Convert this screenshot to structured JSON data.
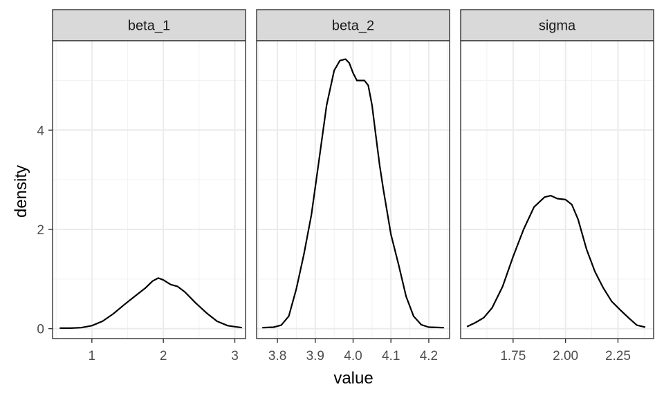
{
  "chart_data": {
    "type": "line",
    "xlabel": "value",
    "ylabel": "density",
    "ylim": [
      -0.2,
      5.8
    ],
    "y_ticks": [
      0,
      2,
      4
    ],
    "y_tick_labels": [
      "0",
      "2",
      "4"
    ],
    "grid": true,
    "facets": [
      {
        "label": "beta_1",
        "xlim": [
          0.45,
          3.15
        ],
        "x_ticks": [
          1,
          2,
          3
        ],
        "x_tick_labels": [
          "1",
          "2",
          "3"
        ],
        "series": [
          {
            "x": [
              0.55,
              0.7,
              0.85,
              1.0,
              1.15,
              1.3,
              1.45,
              1.6,
              1.75,
              1.85,
              1.93,
              2.0,
              2.1,
              2.2,
              2.3,
              2.45,
              2.6,
              2.75,
              2.9,
              3.0,
              3.1
            ],
            "y": [
              0.01,
              0.01,
              0.02,
              0.06,
              0.15,
              0.3,
              0.48,
              0.65,
              0.82,
              0.96,
              1.02,
              0.98,
              0.89,
              0.85,
              0.74,
              0.52,
              0.32,
              0.15,
              0.06,
              0.04,
              0.02
            ]
          }
        ]
      },
      {
        "label": "beta_2",
        "xlim": [
          3.745,
          4.255
        ],
        "x_ticks": [
          3.8,
          3.9,
          4.0,
          4.1,
          4.2
        ],
        "x_tick_labels": [
          "3.8",
          "3.9",
          "4.0",
          "4.1",
          "4.2"
        ],
        "series": [
          {
            "x": [
              3.76,
              3.79,
              3.81,
              3.83,
              3.85,
              3.87,
              3.89,
              3.91,
              3.93,
              3.95,
              3.965,
              3.98,
              3.99,
              4.0,
              4.01,
              4.02,
              4.03,
              4.04,
              4.05,
              4.06,
              4.07,
              4.08,
              4.1,
              4.12,
              4.14,
              4.16,
              4.18,
              4.2,
              4.24
            ],
            "y": [
              0.02,
              0.03,
              0.07,
              0.25,
              0.8,
              1.5,
              2.3,
              3.4,
              4.5,
              5.2,
              5.4,
              5.43,
              5.35,
              5.15,
              5.0,
              5.0,
              5.0,
              4.9,
              4.5,
              3.9,
              3.3,
              2.8,
              1.9,
              1.3,
              0.65,
              0.25,
              0.08,
              0.03,
              0.02
            ]
          }
        ]
      },
      {
        "label": "sigma",
        "xlim": [
          1.5,
          2.42
        ],
        "x_ticks": [
          1.75,
          2.0,
          2.25
        ],
        "x_tick_labels": [
          "1.75",
          "2.00",
          "2.25"
        ],
        "series": [
          {
            "x": [
              1.53,
              1.57,
              1.61,
              1.65,
              1.7,
              1.75,
              1.8,
              1.85,
              1.9,
              1.93,
              1.96,
              2.0,
              2.03,
              2.06,
              2.1,
              2.14,
              2.18,
              2.22,
              2.26,
              2.3,
              2.34,
              2.38
            ],
            "y": [
              0.04,
              0.12,
              0.22,
              0.42,
              0.85,
              1.45,
              2.0,
              2.45,
              2.65,
              2.68,
              2.62,
              2.6,
              2.5,
              2.2,
              1.6,
              1.15,
              0.82,
              0.55,
              0.38,
              0.22,
              0.07,
              0.03
            ]
          }
        ]
      }
    ]
  }
}
